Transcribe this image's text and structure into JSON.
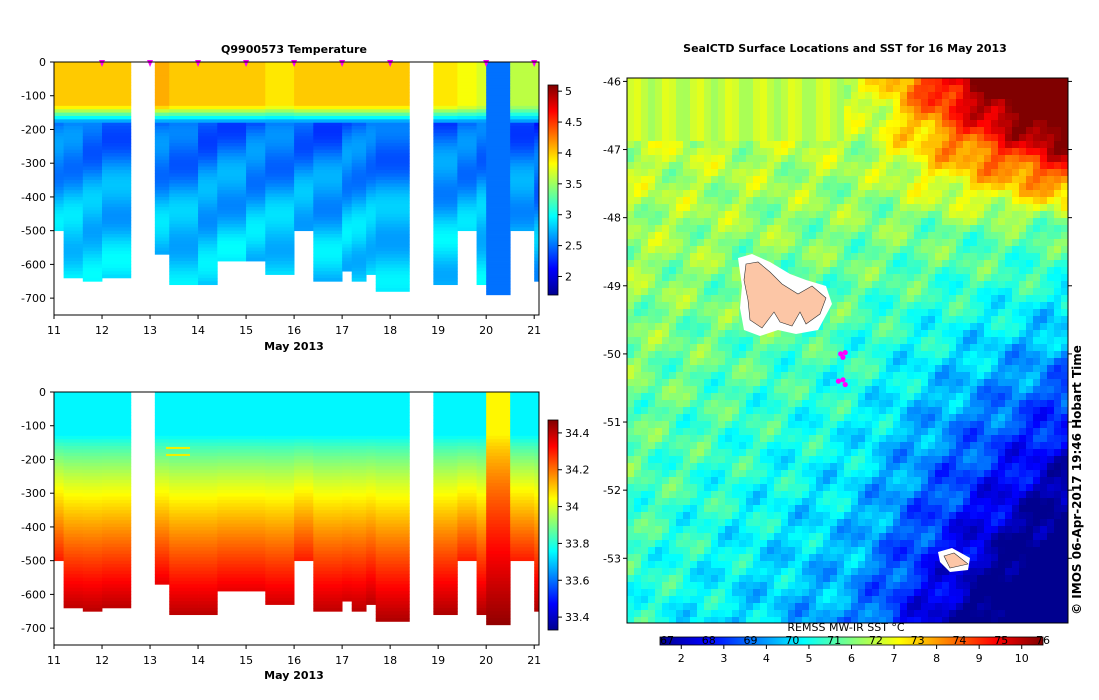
{
  "chart_data": [
    {
      "type": "heatmap",
      "title": "Q9900573  Temperature",
      "xlabel": "May 2013",
      "ylabel": "",
      "x_ticks": [
        "11",
        "12",
        "13",
        "14",
        "15",
        "16",
        "17",
        "18",
        "19",
        "20",
        "21"
      ],
      "xlim": [
        11,
        21.1
      ],
      "y_ticks": [
        "0",
        "-100",
        "-200",
        "-300",
        "-400",
        "-500",
        "-600",
        "-700"
      ],
      "ylim": [
        -750,
        0
      ],
      "profile_markers_day": [
        12,
        13,
        14,
        15,
        16,
        17,
        18,
        20,
        21
      ],
      "colorbar": {
        "min": 1.7,
        "max": 5.1,
        "ticks": [
          "2",
          "2.5",
          "3",
          "3.5",
          "4",
          "4.5",
          "5"
        ],
        "tick_values": [
          2,
          2.5,
          3,
          3.5,
          4,
          4.5,
          5
        ]
      },
      "profiles": [
        {
          "x0": 11.0,
          "x1": 11.2,
          "depth": 500,
          "surface": 4.0,
          "deep": 3.0
        },
        {
          "x0": 11.2,
          "x1": 11.6,
          "depth": 640,
          "surface": 4.0,
          "deep": 3.0
        },
        {
          "x0": 11.6,
          "x1": 12.0,
          "depth": 645,
          "surface": 4.0,
          "deep": 2.9
        },
        {
          "x0": 12.0,
          "x1": 12.6,
          "depth": 635,
          "surface": 4.0,
          "deep": 2.9
        },
        {
          "x0": 13.1,
          "x1": 13.4,
          "depth": 565,
          "surface": 4.1,
          "deep": 2.9
        },
        {
          "x0": 13.4,
          "x1": 14.0,
          "depth": 655,
          "surface": 4.0,
          "deep": 2.8
        },
        {
          "x0": 14.0,
          "x1": 14.4,
          "depth": 655,
          "surface": 4.0,
          "deep": 2.8
        },
        {
          "x0": 14.4,
          "x1": 15.0,
          "depth": 585,
          "surface": 4.0,
          "deep": 2.9
        },
        {
          "x0": 15.0,
          "x1": 15.4,
          "depth": 585,
          "surface": 4.0,
          "deep": 2.9
        },
        {
          "x0": 15.4,
          "x1": 16.0,
          "depth": 630,
          "surface": 3.9,
          "deep": 2.9
        },
        {
          "x0": 16.0,
          "x1": 16.4,
          "depth": 500,
          "surface": 4.0,
          "deep": 2.9
        },
        {
          "x0": 16.4,
          "x1": 17.0,
          "depth": 650,
          "surface": 4.0,
          "deep": 2.8
        },
        {
          "x0": 17.0,
          "x1": 17.2,
          "depth": 620,
          "surface": 4.0,
          "deep": 2.9
        },
        {
          "x0": 17.2,
          "x1": 17.5,
          "depth": 645,
          "surface": 4.0,
          "deep": 2.9
        },
        {
          "x0": 17.5,
          "x1": 17.7,
          "depth": 625,
          "surface": 4.0,
          "deep": 2.9
        },
        {
          "x0": 17.7,
          "x1": 18.4,
          "depth": 680,
          "surface": 4.0,
          "deep": 2.8
        },
        {
          "x0": 18.9,
          "x1": 19.4,
          "depth": 660,
          "surface": 3.9,
          "deep": 2.9
        },
        {
          "x0": 19.4,
          "x1": 19.8,
          "depth": 500,
          "surface": 3.8,
          "deep": 2.9
        },
        {
          "x0": 19.8,
          "x1": 20.0,
          "depth": 660,
          "surface": 3.7,
          "deep": 2.9
        },
        {
          "x0": 20.0,
          "x1": 20.5,
          "depth": 690,
          "surface": 2.5,
          "deep": 2.5
        },
        {
          "x0": 20.5,
          "x1": 21.0,
          "depth": 500,
          "surface": 3.6,
          "deep": 2.8
        },
        {
          "x0": 21.0,
          "x1": 21.1,
          "depth": 650,
          "surface": 3.6,
          "deep": 2.5
        }
      ]
    },
    {
      "type": "heatmap",
      "title": "",
      "xlabel": "May 2013",
      "ylabel": "",
      "x_ticks": [
        "11",
        "12",
        "13",
        "14",
        "15",
        "16",
        "17",
        "18",
        "19",
        "20",
        "21"
      ],
      "xlim": [
        11,
        21.1
      ],
      "y_ticks": [
        "0",
        "-100",
        "-200",
        "-300",
        "-400",
        "-500",
        "-600",
        "-700"
      ],
      "ylim": [
        -750,
        0
      ],
      "colorbar": {
        "min": 33.33,
        "max": 34.47,
        "ticks": [
          "33.4",
          "33.6",
          "33.8",
          "34",
          "34.2",
          "34.4"
        ],
        "tick_values": [
          33.4,
          33.6,
          33.8,
          34.0,
          34.2,
          34.4
        ]
      },
      "profiles": [
        {
          "x0": 11.0,
          "x1": 11.2,
          "depth": 500,
          "surface": 33.75,
          "deep": 34.3
        },
        {
          "x0": 11.2,
          "x1": 11.6,
          "depth": 640,
          "surface": 33.75,
          "deep": 34.4
        },
        {
          "x0": 11.6,
          "x1": 12.0,
          "depth": 645,
          "surface": 33.75,
          "deep": 34.4
        },
        {
          "x0": 12.0,
          "x1": 12.6,
          "depth": 635,
          "surface": 33.75,
          "deep": 34.4
        },
        {
          "x0": 13.1,
          "x1": 13.4,
          "depth": 565,
          "surface": 33.75,
          "deep": 34.35
        },
        {
          "x0": 13.4,
          "x1": 14.0,
          "depth": 655,
          "surface": 33.75,
          "deep": 34.4
        },
        {
          "x0": 14.0,
          "x1": 14.4,
          "depth": 655,
          "surface": 33.75,
          "deep": 34.4
        },
        {
          "x0": 14.4,
          "x1": 15.0,
          "depth": 585,
          "surface": 33.75,
          "deep": 34.35
        },
        {
          "x0": 15.0,
          "x1": 15.4,
          "depth": 585,
          "surface": 33.75,
          "deep": 34.35
        },
        {
          "x0": 15.4,
          "x1": 16.0,
          "depth": 630,
          "surface": 33.75,
          "deep": 34.38
        },
        {
          "x0": 16.0,
          "x1": 16.4,
          "depth": 500,
          "surface": 33.75,
          "deep": 34.3
        },
        {
          "x0": 16.4,
          "x1": 17.0,
          "depth": 650,
          "surface": 33.75,
          "deep": 34.4
        },
        {
          "x0": 17.0,
          "x1": 17.2,
          "depth": 620,
          "surface": 33.75,
          "deep": 34.38
        },
        {
          "x0": 17.2,
          "x1": 17.5,
          "depth": 645,
          "surface": 33.75,
          "deep": 34.4
        },
        {
          "x0": 17.5,
          "x1": 17.7,
          "depth": 625,
          "surface": 33.75,
          "deep": 34.4
        },
        {
          "x0": 17.7,
          "x1": 18.4,
          "depth": 680,
          "surface": 33.75,
          "deep": 34.42
        },
        {
          "x0": 18.9,
          "x1": 19.4,
          "depth": 660,
          "surface": 33.75,
          "deep": 34.42
        },
        {
          "x0": 19.4,
          "x1": 19.8,
          "depth": 500,
          "surface": 33.75,
          "deep": 34.3
        },
        {
          "x0": 19.8,
          "x1": 20.0,
          "depth": 660,
          "surface": 33.75,
          "deep": 34.42
        },
        {
          "x0": 20.0,
          "x1": 20.5,
          "depth": 690,
          "surface": 34.05,
          "deep": 34.45
        },
        {
          "x0": 20.5,
          "x1": 21.0,
          "depth": 500,
          "surface": 33.75,
          "deep": 34.3
        },
        {
          "x0": 21.0,
          "x1": 21.1,
          "depth": 650,
          "surface": 33.75,
          "deep": 34.42
        }
      ]
    },
    {
      "type": "heatmap",
      "title": "SealCTD Surface Locations and SST for 16 May 2013",
      "xlabel": "",
      "ylabel": "",
      "lat_ticks": [
        "-46",
        "-47",
        "-48",
        "-49",
        "-50",
        "-51",
        "-52",
        "-53"
      ],
      "lat_values": [
        -46,
        -47,
        -48,
        -49,
        -50,
        -51,
        -52,
        -53
      ],
      "ylim": [
        -53.95,
        -45.95
      ],
      "lon_ticks": [
        "67",
        "68",
        "69",
        "70",
        "71",
        "72",
        "73",
        "74",
        "75"
      ],
      "colorbar": {
        "title": "REMSS MW-IR SST °C",
        "min": 1.5,
        "max": 10.5,
        "ticks": [
          "2",
          "3",
          "4",
          "5",
          "6",
          "7",
          "8",
          "9",
          "10"
        ],
        "tick_values": [
          2,
          3,
          4,
          5,
          6,
          7,
          8,
          9,
          10
        ],
        "top_ticks": [
          "67",
          "68",
          "69",
          "70",
          "71",
          "72",
          "73",
          "74",
          "75",
          "76"
        ]
      },
      "seal_locations": [
        {
          "lon": 71.0,
          "lat": -50.0
        },
        {
          "lon": 71.1,
          "lat": -49.98
        },
        {
          "lon": 71.05,
          "lat": -50.05
        },
        {
          "lon": 70.95,
          "lat": -50.4
        },
        {
          "lon": 71.05,
          "lat": -50.38
        },
        {
          "lon": 71.1,
          "lat": -50.45
        }
      ]
    }
  ],
  "side_text": "© IMOS 06-Apr-2017 19:46 Hobart Time"
}
